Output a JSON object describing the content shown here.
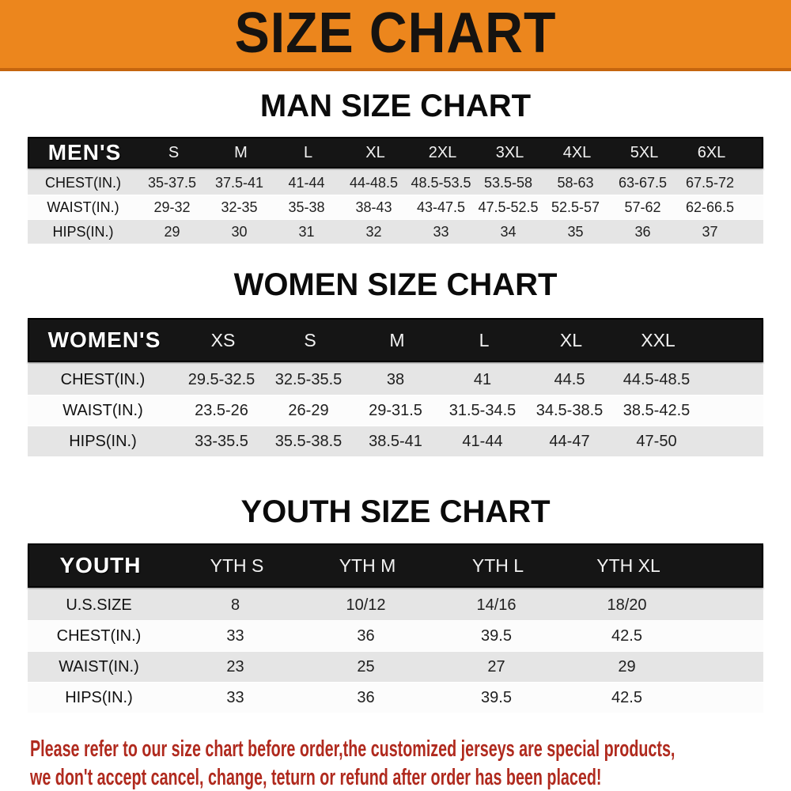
{
  "banner": {
    "title": "SIZE CHART",
    "bg_color": "#ec861d",
    "border_color": "#c5650e"
  },
  "notice": {
    "line1": "Please refer to our size chart before order,the customized jerseys are special products,",
    "line2": "we don't accept cancel, change, teturn or refund after order has been placed!",
    "color": "#b02a1e"
  },
  "colors": {
    "header_bar": "#151515",
    "stripe_row": "#e5e5e5",
    "plain_row": "#fcfcfc"
  },
  "chart_data": [
    {
      "type": "table",
      "id": "men",
      "title": "MAN SIZE CHART",
      "header_label": "MEN'S",
      "columns": [
        "S",
        "M",
        "L",
        "XL",
        "2XL",
        "3XL",
        "4XL",
        "5XL",
        "6XL"
      ],
      "rows": [
        {
          "label": "CHEST(IN.)",
          "values": [
            "35-37.5",
            "37.5-41",
            "41-44",
            "44-48.5",
            "48.5-53.5",
            "53.5-58",
            "58-63",
            "63-67.5",
            "67.5-72"
          ]
        },
        {
          "label": "WAIST(IN.)",
          "values": [
            "29-32",
            "32-35",
            "35-38",
            "38-43",
            "43-47.5",
            "47.5-52.5",
            "52.5-57",
            "57-62",
            "62-66.5"
          ]
        },
        {
          "label": "HIPS(IN.)",
          "values": [
            "29",
            "30",
            "31",
            "32",
            "33",
            "34",
            "35",
            "36",
            "37"
          ]
        }
      ]
    },
    {
      "type": "table",
      "id": "women",
      "title": "WOMEN SIZE CHART",
      "header_label": "WOMEN'S",
      "columns": [
        "XS",
        "S",
        "M",
        "L",
        "XL",
        "XXL"
      ],
      "rows": [
        {
          "label": "CHEST(IN.)",
          "values": [
            "29.5-32.5",
            "32.5-35.5",
            "38",
            "41",
            "44.5",
            "44.5-48.5"
          ]
        },
        {
          "label": "WAIST(IN.)",
          "values": [
            "23.5-26",
            "26-29",
            "29-31.5",
            "31.5-34.5",
            "34.5-38.5",
            "38.5-42.5"
          ]
        },
        {
          "label": "HIPS(IN.)",
          "values": [
            "33-35.5",
            "35.5-38.5",
            "38.5-41",
            "41-44",
            "44-47",
            "47-50"
          ]
        }
      ]
    },
    {
      "type": "table",
      "id": "youth",
      "title": "YOUTH SIZE CHART",
      "header_label": "YOUTH",
      "columns": [
        "YTH S",
        "YTH M",
        "YTH L",
        "YTH XL"
      ],
      "rows": [
        {
          "label": "U.S.SIZE",
          "values": [
            "8",
            "10/12",
            "14/16",
            "18/20"
          ]
        },
        {
          "label": "CHEST(IN.)",
          "values": [
            "33",
            "36",
            "39.5",
            "42.5"
          ]
        },
        {
          "label": "WAIST(IN.)",
          "values": [
            "23",
            "25",
            "27",
            "29"
          ]
        },
        {
          "label": "HIPS(IN.)",
          "values": [
            "33",
            "36",
            "39.5",
            "42.5"
          ]
        }
      ]
    }
  ]
}
